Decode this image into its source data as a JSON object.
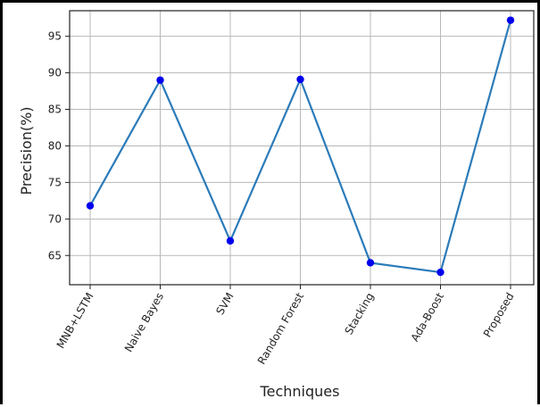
{
  "chart_data": {
    "type": "line",
    "title": "",
    "xlabel": "Techniques",
    "ylabel": "Precision(%)",
    "categories": [
      "MNB+LSTM",
      "Naive Bayes",
      "SVM",
      "Random Forest",
      "Stacking",
      "Ada-Boost",
      "Proposed"
    ],
    "series": [
      {
        "values": [
          71.8,
          89.0,
          67.0,
          89.1,
          64.0,
          62.7,
          97.2
        ]
      }
    ],
    "ylim": [
      61,
      98.5
    ],
    "yticks": [
      65,
      70,
      75,
      80,
      85,
      90,
      95
    ],
    "grid": true,
    "line_color": "#2b7bb9",
    "marker_color": "#0000ee"
  }
}
